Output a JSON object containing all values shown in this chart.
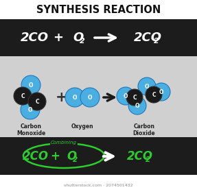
{
  "title": "SYNTHESIS REACTION",
  "title_color": "#111111",
  "title_bg": "#ffffff",
  "eq_top_bg": "#1c1c1c",
  "eq_top_color": "#ffffff",
  "mid_bg": "#d0d0d0",
  "bottom_bg": "#1c1c1c",
  "bottom_green": "#2ecc2e",
  "labels": [
    "Carbon\nMonoxide",
    "Oxygen",
    "Carbon\nDioxide"
  ],
  "label_color": "#222222",
  "carbon_color": "#1a1a1a",
  "oxygen_color": "#4aaee0",
  "watermark_color": "#888888",
  "watermark": "shutterstock.com · 2074501432"
}
